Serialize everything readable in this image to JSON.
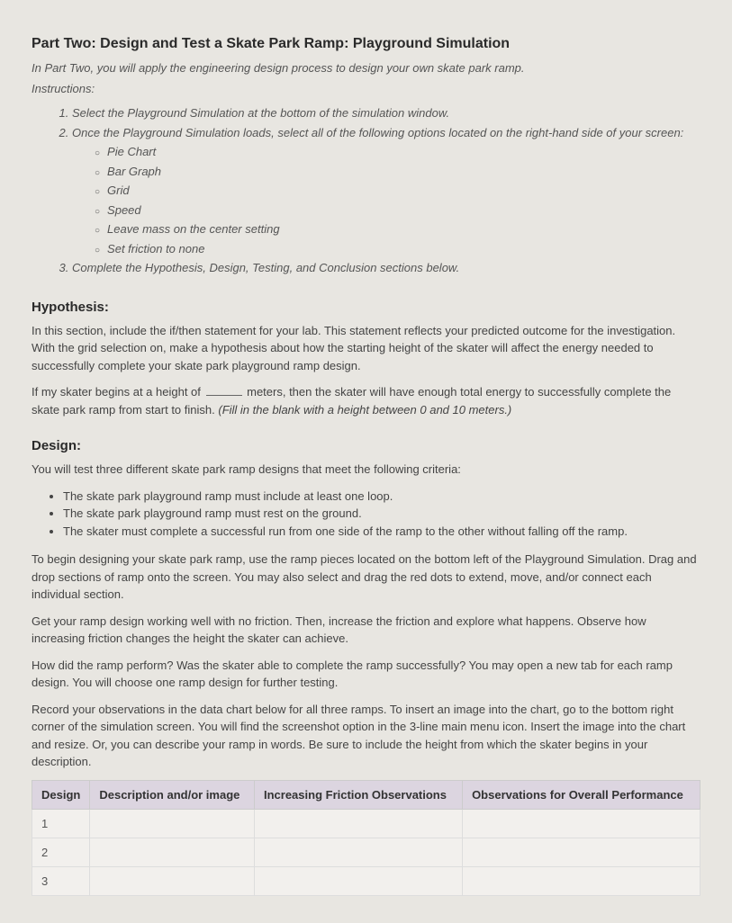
{
  "title": "Part Two: Design and Test a Skate Park Ramp: Playground Simulation",
  "intro": "In Part Two, you will apply the engineering design process to design your own skate park ramp.",
  "instructions_label": "Instructions:",
  "instructions": {
    "item1": "Select the Playground Simulation at the bottom of the simulation window.",
    "item2": "Once the Playground Simulation loads, select all of the following options located on the right-hand side of your screen:",
    "sub": {
      "s1": "Pie Chart",
      "s2": "Bar Graph",
      "s3": "Grid",
      "s4": "Speed",
      "s5": "Leave mass on the center setting",
      "s6": "Set friction to none"
    },
    "item3": "Complete the Hypothesis, Design, Testing, and Conclusion sections below."
  },
  "hypothesis": {
    "heading": "Hypothesis:",
    "p1": "In this section, include the if/then statement for your lab. This statement reflects your predicted outcome for the investigation. With the grid selection on, make a hypothesis about how the starting height of the skater will affect the energy needed to successfully complete your skate park playground ramp design.",
    "p2a": "If my skater begins at a height of ",
    "p2b": " meters, then the skater will have enough total energy to successfully complete the skate park ramp from start to finish. ",
    "p2c": "(Fill in the blank with a height between 0 and 10 meters.)"
  },
  "design": {
    "heading": "Design:",
    "p1": "You will test three different skate park ramp designs that meet the following criteria:",
    "criteria": {
      "c1": "The skate park playground ramp must include at least one loop.",
      "c2": "The skate park playground ramp must rest on the ground.",
      "c3": "The skater must complete a successful run from one side of the ramp to the other without falling off the ramp."
    },
    "p2": "To begin designing your skate park ramp, use the ramp pieces located on the bottom left of the Playground Simulation. Drag and drop sections of ramp onto the screen. You may also select and drag the red dots to extend, move, and/or connect each individual section.",
    "p3": "Get your ramp design working well with no friction. Then, increase the friction and explore what happens. Observe how increasing friction changes the height the skater can achieve.",
    "p4": "How did the ramp perform? Was the skater able to complete the ramp successfully? You may open a new tab for each ramp design. You will choose one ramp design for further testing.",
    "p5": "Record your observations in the data chart below for all three ramps. To insert an image into the chart, go to the bottom right corner of the simulation screen. You will find the screenshot option in the 3-line main menu icon. Insert the image into the chart and resize. Or, you can describe your ramp in words. Be sure to include the height from which the skater begins in your description."
  },
  "table": {
    "headers": {
      "h1": "Design",
      "h2": "Description and/or image",
      "h3": "Increasing Friction Observations",
      "h4": "Observations for Overall Performance"
    },
    "rows": {
      "r1": "1",
      "r2": "2",
      "r3": "3"
    }
  }
}
